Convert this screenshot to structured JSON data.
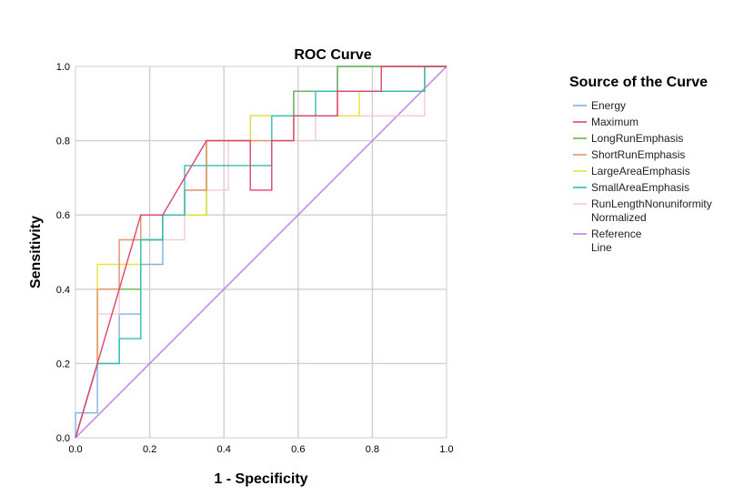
{
  "chart_data": {
    "type": "line",
    "title": "ROC Curve",
    "xlabel": "1 - Specificity",
    "ylabel": "Sensitivity",
    "xlim": [
      0,
      1
    ],
    "ylim": [
      0,
      1
    ],
    "xticks": [
      "0.0",
      "0.2",
      "0.4",
      "0.6",
      "0.8",
      "1.0"
    ],
    "yticks": [
      "0.0",
      "0.2",
      "0.4",
      "0.6",
      "0.8",
      "1.0"
    ],
    "grid": true,
    "legend": {
      "title": "Source of the Curve",
      "placement": "right"
    },
    "series": [
      {
        "name": "Energy",
        "color": "#7fb1e3",
        "x": [
          0,
          0,
          0.059,
          0.059,
          0.118,
          0.118,
          0.176,
          0.176,
          0.235,
          0.235,
          0.294,
          0.294,
          0.353,
          0.353,
          0.471,
          0.471,
          0.588,
          0.588,
          0.706,
          0.706,
          1.0
        ],
        "y": [
          0,
          0.067,
          0.067,
          0.2,
          0.2,
          0.333,
          0.333,
          0.467,
          0.467,
          0.6,
          0.6,
          0.667,
          0.667,
          0.8,
          0.8,
          0.867,
          0.867,
          0.933,
          0.933,
          1.0,
          1.0
        ]
      },
      {
        "name": "Maximum",
        "color": "#e0446e",
        "x": [
          0,
          0.059,
          0.118,
          0.176,
          0.235,
          0.353,
          0.412,
          0.471,
          0.471,
          0.529,
          0.529,
          0.588,
          0.588,
          0.706,
          0.706,
          0.824,
          0.824,
          0.941,
          1.0
        ],
        "y": [
          0,
          0.2,
          0.4,
          0.6,
          0.6,
          0.8,
          0.8,
          0.8,
          0.667,
          0.667,
          0.8,
          0.8,
          0.867,
          0.867,
          0.933,
          0.933,
          1.0,
          1.0,
          1.0
        ]
      },
      {
        "name": "LongRunEmphasis",
        "color": "#6fb04f",
        "x": [
          0,
          0.059,
          0.059,
          0.176,
          0.176,
          0.235,
          0.235,
          0.353,
          0.353,
          0.471,
          0.471,
          0.588,
          0.588,
          0.706,
          0.706,
          1.0
        ],
        "y": [
          0,
          0.2,
          0.4,
          0.4,
          0.533,
          0.533,
          0.6,
          0.6,
          0.8,
          0.8,
          0.867,
          0.867,
          0.933,
          0.933,
          1.0,
          1.0
        ]
      },
      {
        "name": "ShortRunEmphasis",
        "color": "#e9946e",
        "x": [
          0,
          0.059,
          0.059,
          0.118,
          0.118,
          0.176,
          0.176,
          0.294,
          0.294,
          0.353,
          0.353,
          0.588,
          0.588,
          0.706,
          0.706,
          0.941,
          0.941,
          1.0
        ],
        "y": [
          0,
          0.2,
          0.4,
          0.4,
          0.533,
          0.533,
          0.6,
          0.6,
          0.667,
          0.667,
          0.8,
          0.8,
          0.867,
          0.867,
          0.933,
          0.933,
          1.0,
          1.0
        ]
      },
      {
        "name": "LargeAreaEmphasis",
        "color": "#e6e23a",
        "x": [
          0,
          0.059,
          0.059,
          0.176,
          0.176,
          0.353,
          0.353,
          0.471,
          0.471,
          0.765,
          0.765,
          0.941,
          0.941,
          1.0
        ],
        "y": [
          0,
          0.2,
          0.467,
          0.467,
          0.6,
          0.6,
          0.8,
          0.8,
          0.867,
          0.867,
          0.933,
          0.933,
          1.0,
          1.0
        ]
      },
      {
        "name": "SmallAreaEmphasis",
        "color": "#2fbfb2",
        "x": [
          0,
          0.059,
          0.118,
          0.118,
          0.176,
          0.176,
          0.235,
          0.235,
          0.294,
          0.294,
          0.529,
          0.529,
          0.647,
          0.647,
          0.941,
          0.941,
          1.0
        ],
        "y": [
          0,
          0.2,
          0.2,
          0.267,
          0.267,
          0.533,
          0.533,
          0.6,
          0.6,
          0.733,
          0.733,
          0.867,
          0.867,
          0.933,
          0.933,
          1.0,
          1.0
        ]
      },
      {
        "name": "RunLengthNonuniformity Normalized",
        "color": "#f6c8d2",
        "x": [
          0,
          0.059,
          0.059,
          0.118,
          0.118,
          0.294,
          0.294,
          0.412,
          0.412,
          0.647,
          0.647,
          0.941,
          0.941,
          1.0
        ],
        "y": [
          0,
          0.2,
          0.333,
          0.333,
          0.533,
          0.533,
          0.667,
          0.667,
          0.8,
          0.8,
          0.867,
          0.867,
          1.0,
          1.0
        ]
      },
      {
        "name": "Reference Line",
        "color": "#c27ee8",
        "x": [
          0,
          1
        ],
        "y": [
          0,
          1
        ]
      }
    ]
  }
}
